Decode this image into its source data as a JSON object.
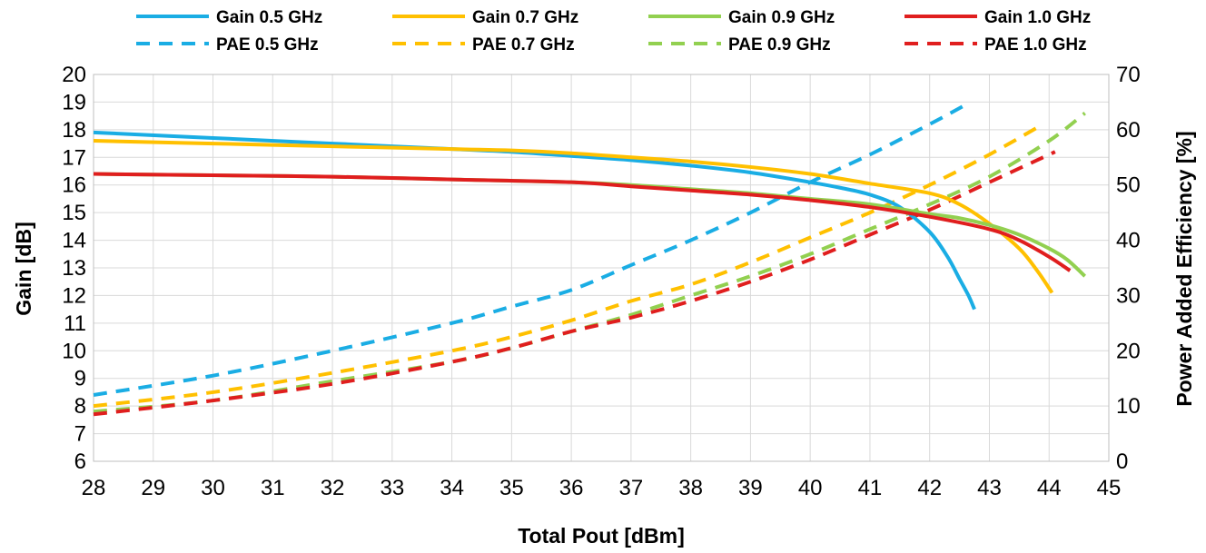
{
  "chart_data": {
    "type": "line",
    "title": "",
    "xlabel": "Total Pout [dBm]",
    "ylabel_left": "Gain [dB]",
    "ylabel_right": "Power Added Efficiency [%]",
    "xlim": [
      28,
      45
    ],
    "ylim_left": [
      6,
      20
    ],
    "ylim_right": [
      0,
      70
    ],
    "x_ticks": [
      28,
      29,
      30,
      31,
      32,
      33,
      34,
      35,
      36,
      37,
      38,
      39,
      40,
      41,
      42,
      43,
      44,
      45
    ],
    "y_left_ticks": [
      6,
      7,
      8,
      9,
      10,
      11,
      12,
      13,
      14,
      15,
      16,
      17,
      18,
      19,
      20
    ],
    "y_right_ticks": [
      0,
      10,
      20,
      30,
      40,
      50,
      60,
      70
    ],
    "grid": true,
    "legend_position": "top",
    "series": [
      {
        "name": "Gain 0.5 GHz",
        "axis": "left",
        "color": "#1AADE4",
        "dash": false,
        "x": [
          28,
          30,
          32,
          34,
          35,
          36,
          37,
          38,
          39,
          40,
          40.5,
          41,
          41.5,
          42,
          42.3,
          42.5,
          42.65,
          42.75
        ],
        "y": [
          17.9,
          17.7,
          17.5,
          17.3,
          17.2,
          17.05,
          16.9,
          16.7,
          16.45,
          16.1,
          15.9,
          15.65,
          15.2,
          14.3,
          13.4,
          12.6,
          12.0,
          11.5
        ]
      },
      {
        "name": "Gain 0.7 GHz",
        "axis": "left",
        "color": "#FFC000",
        "dash": false,
        "x": [
          28,
          30,
          32,
          34,
          35,
          36,
          37,
          38,
          39,
          40,
          41,
          42,
          42.5,
          43,
          43.5,
          43.8,
          44.05
        ],
        "y": [
          17.6,
          17.5,
          17.4,
          17.3,
          17.25,
          17.15,
          17.0,
          16.85,
          16.65,
          16.4,
          16.05,
          15.7,
          15.3,
          14.6,
          13.7,
          12.9,
          12.1
        ]
      },
      {
        "name": "Gain 0.9 GHz",
        "axis": "left",
        "color": "#92D050",
        "dash": false,
        "x": [
          28,
          30,
          32,
          34,
          36,
          37,
          38,
          39,
          40,
          41,
          42,
          42.5,
          43,
          43.5,
          44,
          44.3,
          44.6
        ],
        "y": [
          16.4,
          16.35,
          16.3,
          16.2,
          16.1,
          16.0,
          15.85,
          15.7,
          15.5,
          15.3,
          14.95,
          14.8,
          14.55,
          14.2,
          13.7,
          13.3,
          12.7
        ]
      },
      {
        "name": "Gain 1.0 GHz",
        "axis": "left",
        "color": "#E01E1E",
        "dash": false,
        "x": [
          28,
          30,
          32,
          34,
          36,
          37,
          38,
          39,
          40,
          41,
          42,
          43,
          43.5,
          44,
          44.35
        ],
        "y": [
          16.4,
          16.35,
          16.3,
          16.2,
          16.1,
          15.95,
          15.8,
          15.65,
          15.45,
          15.2,
          14.85,
          14.4,
          14.0,
          13.4,
          12.9
        ]
      },
      {
        "name": "PAE 0.5 GHz",
        "axis": "right",
        "color": "#1AADE4",
        "dash": true,
        "x": [
          28,
          30,
          32,
          34,
          35,
          36,
          37,
          38,
          39,
          40,
          41,
          42,
          42.6
        ],
        "y": [
          12,
          15.5,
          20,
          25,
          28,
          31,
          35.5,
          40,
          45,
          50.5,
          55.5,
          61,
          64.5
        ]
      },
      {
        "name": "PAE 0.7 GHz",
        "axis": "right",
        "color": "#FFC000",
        "dash": true,
        "x": [
          28,
          30,
          32,
          34,
          35,
          36,
          37,
          38,
          39,
          40,
          41,
          42,
          43,
          43.9
        ],
        "y": [
          10,
          12.5,
          16,
          20,
          22.5,
          25.5,
          29,
          32,
          36,
          40.5,
          45,
          50,
          55.5,
          61
        ]
      },
      {
        "name": "PAE 0.9 GHz",
        "axis": "right",
        "color": "#92D050",
        "dash": true,
        "x": [
          28,
          30,
          32,
          34,
          35,
          36,
          37,
          38,
          39,
          40,
          41,
          42,
          43,
          44,
          44.6
        ],
        "y": [
          9,
          11,
          14.5,
          18,
          20.5,
          23.5,
          26.5,
          30,
          33.5,
          37.5,
          42,
          46.5,
          51.5,
          58,
          63
        ]
      },
      {
        "name": "PAE 1.0 GHz",
        "axis": "right",
        "color": "#E01E1E",
        "dash": true,
        "x": [
          28,
          30,
          32,
          34,
          35,
          36,
          37,
          38,
          39,
          40,
          41,
          42,
          43,
          44.1
        ],
        "y": [
          8.5,
          11,
          14,
          18,
          20.5,
          23.5,
          26,
          29,
          32.5,
          36.5,
          41,
          45.5,
          50.5,
          56
        ]
      }
    ]
  }
}
